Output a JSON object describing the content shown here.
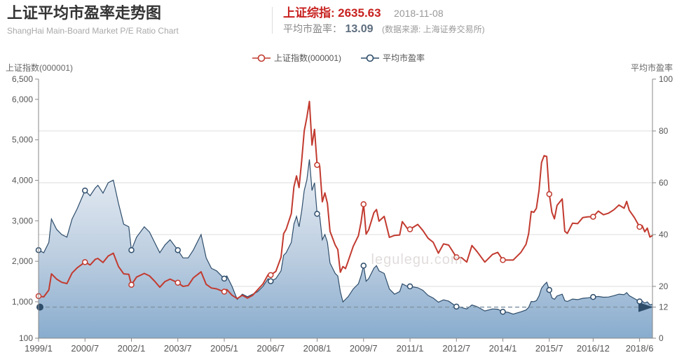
{
  "header": {
    "title": "上证平均市盈率走势图",
    "subtitle": "ShangHai Main-Board Market P/E Ratio Chart",
    "index_label": "上证综指:",
    "index_value": "2635.63",
    "date": "2018-11-08",
    "pe_label": "平均市盈率：",
    "pe_value": "13.09",
    "source_note": "(数据来源: 上海证券交易所)"
  },
  "colors": {
    "index_line": "#c23a2f",
    "pe_line": "#2e4d6b",
    "header_red": "#c7211f",
    "pe_value_color": "#5d6d7e",
    "gridline": "#dddddd",
    "axis": "#888888",
    "area_top": "#e9eef5",
    "area_mid": "#b6c9dd",
    "area_bottom": "#7ea5ca",
    "dashed_line": "#8496a6"
  },
  "legend": [
    {
      "label": "上证指数(000001)",
      "color": "#c23a2f"
    },
    {
      "label": "平均市盈率",
      "color": "#2e4d6b"
    }
  ],
  "axes": {
    "left_title": "上证指数(000001)",
    "right_title": "平均市盈率"
  },
  "watermark": "legulegu.com",
  "chart_data": {
    "type": "line",
    "title": "上证平均市盈率走势图",
    "legend_position": "top-center",
    "grid": "horizontal-only",
    "x_ticks": [
      "1999/1",
      "2000/7",
      "2002/1",
      "2003/7",
      "2005/1",
      "2006/7",
      "2008/1",
      "2009/7",
      "2011/1",
      "2012/7",
      "2014/1",
      "2015/7",
      "2016/12",
      "2018/6"
    ],
    "left_axis": {
      "label": "上证指数(000001)",
      "range": [
        100,
        6500
      ],
      "ticks": [
        {
          "v": 6500,
          "label": "6,500"
        },
        {
          "v": 6000,
          "label": "6,000"
        },
        {
          "v": 5000,
          "label": "5,000"
        },
        {
          "v": 4000,
          "label": "4,000"
        },
        {
          "v": 3000,
          "label": "3,000"
        },
        {
          "v": 2000,
          "label": "2,000"
        },
        {
          "v": 1000,
          "label": "1,000"
        },
        {
          "v": 100,
          "label": "100"
        }
      ]
    },
    "right_axis": {
      "label": "平均市盈率",
      "range": [
        0,
        100
      ],
      "ticks": [
        100,
        80,
        60,
        40,
        20,
        12,
        0
      ],
      "gridlines": [
        80,
        60,
        40,
        20
      ]
    },
    "reference_line": {
      "axis": "right",
      "value": 12,
      "style": "dashed-with-dot-and-arrow"
    },
    "x": [
      "1999/1",
      "1999/3",
      "1999/5",
      "1999/6",
      "1999/8",
      "1999/10",
      "1999/12",
      "2000/2",
      "2000/4",
      "2000/7",
      "2000/9",
      "2000/11",
      "2000/12",
      "2001/2",
      "2001/4",
      "2001/6",
      "2001/8",
      "2001/10",
      "2001/12",
      "2002/1",
      "2002/3",
      "2002/6",
      "2002/8",
      "2002/10",
      "2002/12",
      "2003/2",
      "2003/4",
      "2003/7",
      "2003/9",
      "2003/11",
      "2004/1",
      "2004/4",
      "2004/6",
      "2004/8",
      "2004/10",
      "2004/12",
      "2005/1",
      "2005/2",
      "2005/4",
      "2005/6",
      "2005/8",
      "2005/10",
      "2005/12",
      "2006/2",
      "2006/4",
      "2006/6",
      "2006/7",
      "2006/9",
      "2006/11",
      "2006/12",
      "2007/1",
      "2007/3",
      "2007/4",
      "2007/5",
      "2007/6",
      "2007/7",
      "2007/8",
      "2007/9",
      "2007/10",
      "2007/11",
      "2007/12",
      "2008/1",
      "2008/2",
      "2008/3",
      "2008/4",
      "2008/5",
      "2008/6",
      "2008/8",
      "2008/9",
      "2008/10",
      "2008/11",
      "2008/12",
      "2009/1",
      "2009/3",
      "2009/5",
      "2009/6",
      "2009/7",
      "2009/8",
      "2009/9",
      "2009/11",
      "2009/12",
      "2010/1",
      "2010/3",
      "2010/5",
      "2010/7",
      "2010/9",
      "2010/10",
      "2010/12",
      "2011/1",
      "2011/4",
      "2011/6",
      "2011/8",
      "2011/10",
      "2011/12",
      "2012/2",
      "2012/4",
      "2012/7",
      "2012/9",
      "2012/11",
      "2013/1",
      "2013/3",
      "2013/6",
      "2013/9",
      "2013/11",
      "2014/1",
      "2014/3",
      "2014/5",
      "2014/8",
      "2014/10",
      "2014/11",
      "2014/12",
      "2015/1",
      "2015/2",
      "2015/3",
      "2015/4",
      "2015/5",
      "2015/6",
      "2015/7",
      "2015/8",
      "2015/9",
      "2015/10",
      "2015/12",
      "2016/1",
      "2016/2",
      "2016/4",
      "2016/6",
      "2016/8",
      "2016/10",
      "2016/12",
      "2017/2",
      "2017/4",
      "2017/6",
      "2017/8",
      "2017/10",
      "2017/12",
      "2018/1",
      "2018/2",
      "2018/4",
      "2018/6",
      "2018/7",
      "2018/8",
      "2018/9",
      "2018/10",
      "2018/11"
    ],
    "series": [
      {
        "name": "上证指数(000001)",
        "axis": "left",
        "style": "line",
        "color": "#c23a2f",
        "values": [
          1140,
          1120,
          1290,
          1690,
          1560,
          1480,
          1450,
          1710,
          1840,
          1980,
          1910,
          2050,
          2070,
          1970,
          2130,
          2200,
          1870,
          1690,
          1680,
          1420,
          1610,
          1700,
          1640,
          1510,
          1360,
          1500,
          1560,
          1470,
          1380,
          1400,
          1590,
          1740,
          1430,
          1340,
          1320,
          1270,
          1250,
          1300,
          1160,
          1080,
          1160,
          1090,
          1160,
          1300,
          1440,
          1670,
          1660,
          1750,
          2100,
          2680,
          2790,
          3180,
          3840,
          4110,
          3820,
          4470,
          5220,
          5550,
          5950,
          4870,
          5260,
          4380,
          4350,
          3470,
          3690,
          3430,
          2740,
          2400,
          2290,
          1730,
          1870,
          1820,
          2000,
          2370,
          2630,
          2960,
          3410,
          2670,
          2780,
          3200,
          3280,
          2990,
          3110,
          2590,
          2640,
          2650,
          2980,
          2810,
          2790,
          2910,
          2760,
          2570,
          2470,
          2200,
          2430,
          2400,
          2100,
          2090,
          1980,
          2390,
          2240,
          1980,
          2170,
          2220,
          2030,
          2030,
          2030,
          2220,
          2420,
          2680,
          3230,
          3210,
          3310,
          3750,
          4440,
          4610,
          4590,
          3660,
          3210,
          3050,
          3380,
          3540,
          2740,
          2690,
          2940,
          2930,
          3080,
          3100,
          3100,
          3240,
          3150,
          3190,
          3270,
          3390,
          3310,
          3480,
          3260,
          3080,
          2850,
          2880,
          2730,
          2820,
          2600,
          2636
        ]
      },
      {
        "name": "平均市盈率",
        "axis": "right",
        "style": "area",
        "color": "#2e4d6b",
        "values": [
          34,
          33,
          37,
          46,
          42,
          40,
          39,
          46,
          50,
          57,
          55,
          58,
          59,
          56,
          60,
          61,
          52,
          44,
          43,
          34,
          39,
          43,
          41,
          37,
          33,
          36,
          38,
          34,
          31,
          31,
          34,
          40,
          31,
          27,
          26,
          24,
          23,
          24,
          20,
          15,
          17,
          16,
          17,
          18,
          20,
          23,
          22,
          23,
          26,
          32,
          33,
          37,
          44,
          47,
          43,
          49,
          57,
          61,
          69,
          57,
          60,
          48,
          47,
          38,
          40,
          37,
          29,
          25,
          24,
          18,
          14,
          15,
          16,
          19,
          21,
          24,
          28,
          22,
          23,
          27,
          28,
          26,
          25,
          19,
          17,
          18,
          21,
          20,
          20,
          19.5,
          18.5,
          16.5,
          15.5,
          13.9,
          14.8,
          14.3,
          12.2,
          11.8,
          11.3,
          12.8,
          12.2,
          10.5,
          11.3,
          11.2,
          10.2,
          10,
          9.3,
          10.2,
          10.9,
          11.9,
          14.2,
          14.1,
          14.5,
          16.3,
          19.3,
          20.6,
          21.6,
          18.6,
          15.6,
          15,
          16.3,
          17,
          14.5,
          14.2,
          15.1,
          14.9,
          15.4,
          15.6,
          15.9,
          16.1,
          15.8,
          15.9,
          16.4,
          17,
          16.8,
          17.6,
          16.4,
          15.3,
          14.2,
          14.3,
          13.6,
          14,
          12.9,
          13.09
        ]
      }
    ]
  }
}
